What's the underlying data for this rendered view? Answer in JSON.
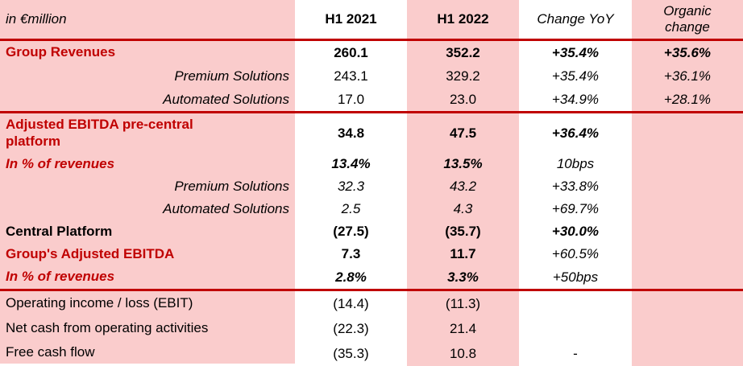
{
  "colors": {
    "accent_red": "#C00000",
    "band_pink": "#FACCCC",
    "text_black": "#000000"
  },
  "chart_data": {
    "type": "table",
    "title": "Financial results table",
    "unit_label": "in €million",
    "columns": [
      "H1 2021",
      "H1 2022",
      "Change YoY",
      "Organic change"
    ],
    "layout": {
      "pink_band_columns": [
        "row labels",
        "H1 2022",
        "Organic change"
      ],
      "red_rules_below": [
        "header",
        "Automated Solutions (revenues)",
        "In % of revenues (group)"
      ]
    },
    "rows": [
      {
        "label": "Group Revenues",
        "h1_2021": "260.1",
        "h1_2022": "352.2",
        "change_yoy": "+35.4%",
        "organic": "+35.6%"
      },
      {
        "label": "Premium Solutions",
        "h1_2021": "243.1",
        "h1_2022": "329.2",
        "change_yoy": "+35.4%",
        "organic": "+36.1%"
      },
      {
        "label": "Automated Solutions",
        "h1_2021": "17.0",
        "h1_2022": "23.0",
        "change_yoy": "+34.9%",
        "organic": "+28.1%"
      },
      {
        "label": "Adjusted EBITDA pre-central platform",
        "h1_2021": "34.8",
        "h1_2022": "47.5",
        "change_yoy": "+36.4%",
        "organic": ""
      },
      {
        "label": "In % of revenues",
        "h1_2021": "13.4%",
        "h1_2022": "13.5%",
        "change_yoy": "10bps",
        "organic": ""
      },
      {
        "label": "Premium Solutions",
        "h1_2021": "32.3",
        "h1_2022": "43.2",
        "change_yoy": "+33.8%",
        "organic": ""
      },
      {
        "label": "Automated Solutions",
        "h1_2021": "2.5",
        "h1_2022": "4.3",
        "change_yoy": "+69.7%",
        "organic": ""
      },
      {
        "label": "Central Platform",
        "h1_2021": "(27.5)",
        "h1_2022": "(35.7)",
        "change_yoy": "+30.0%",
        "organic": ""
      },
      {
        "label": "Group's Adjusted EBITDA",
        "h1_2021": "7.3",
        "h1_2022": "11.7",
        "change_yoy": "+60.5%",
        "organic": ""
      },
      {
        "label": "In % of revenues",
        "h1_2021": "2.8%",
        "h1_2022": "3.3%",
        "change_yoy": "+50bps",
        "organic": ""
      },
      {
        "label": "Operating income / loss (EBIT)",
        "h1_2021": "(14.4)",
        "h1_2022": "(11.3)",
        "change_yoy": "",
        "organic": ""
      },
      {
        "label": "Net cash from operating activities",
        "h1_2021": "(22.3)",
        "h1_2022": "21.4",
        "change_yoy": "",
        "organic": ""
      },
      {
        "label": "Free cash flow",
        "h1_2021": "(35.3)",
        "h1_2022": "10.8",
        "change_yoy": "-",
        "organic": ""
      }
    ]
  }
}
